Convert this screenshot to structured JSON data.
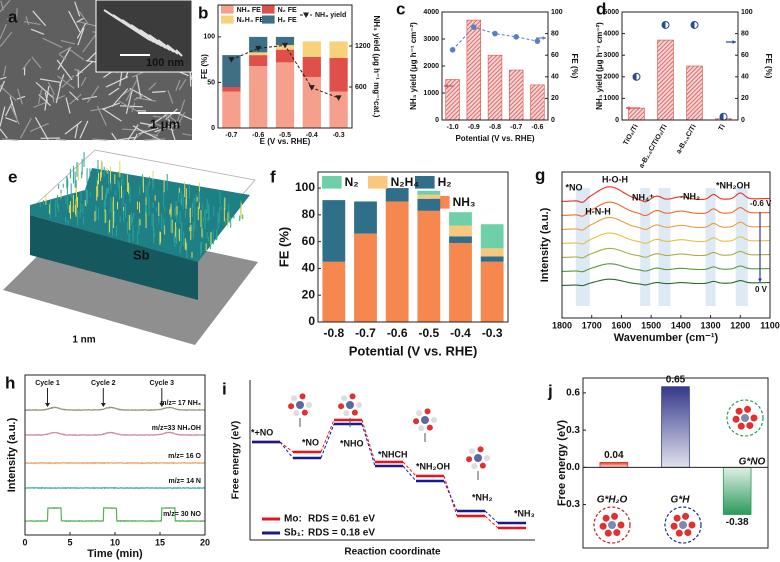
{
  "chart_data": [
    {
      "type": "image",
      "label": "a",
      "annotations": [
        "100 nm",
        "1 μm"
      ]
    },
    {
      "type": "bar",
      "label": "b",
      "stacked": true,
      "xlabel": "E (V vs. RHE)",
      "ylabel": "FE (%)",
      "y2label": "NH₃ yield (μg h⁻¹ mg⁻¹cat.)",
      "categories": [
        "-0.7",
        "-0.6",
        "-0.5",
        "-0.4",
        "-0.3"
      ],
      "series": [
        {
          "name": "NH₃ FE",
          "color": "#f4a08c",
          "values": [
            40,
            68,
            72,
            56,
            40
          ]
        },
        {
          "name": "N₂ FE",
          "color": "#e0504a",
          "values": [
            5,
            12,
            14,
            22,
            37
          ]
        },
        {
          "name": "N₂H₄ FE",
          "color": "#f7d27a",
          "values": [
            0,
            3,
            5,
            17,
            18
          ]
        },
        {
          "name": "H₂ FE",
          "color": "#3d6f86",
          "values": [
            35,
            17,
            9,
            0,
            0
          ]
        },
        {
          "name": "NH₃ yield",
          "color": "#222222",
          "axis": "y2",
          "line": true,
          "dashed": true,
          "marker": "triangle-down",
          "values": [
            1000,
            1165,
            1210,
            590,
            440
          ]
        }
      ],
      "ylim": [
        0,
        135
      ],
      "yticks": [
        0,
        50,
        100
      ],
      "y2lim": [
        0,
        1800
      ],
      "y2ticks": [
        600,
        1200
      ]
    },
    {
      "type": "bar",
      "label": "c",
      "xlabel": "Potential (V vs. RHE)",
      "ylabel": "NH₃ yield (μg h⁻¹ cm⁻²)",
      "y2label": "FE (%)",
      "categories": [
        "-1.0",
        "-0.9",
        "-0.8",
        "-0.7",
        "-0.6"
      ],
      "series": [
        {
          "color": "#d9534f",
          "hatch": true,
          "values": [
            1500,
            3700,
            2400,
            1850,
            1300
          ]
        },
        {
          "color": "#5b7fc4",
          "axis": "y2",
          "line": true,
          "dashed": true,
          "marker": "circle",
          "values": [
            65,
            86,
            80,
            77,
            73
          ]
        }
      ],
      "ylim": [
        0,
        4000
      ],
      "yticks": [
        0,
        1000,
        2000,
        3000,
        4000
      ],
      "y2lim": [
        0,
        100
      ],
      "y2ticks": [
        0,
        20,
        40,
        60,
        80,
        100
      ]
    },
    {
      "type": "bar",
      "label": "d",
      "ylabel": "NH₃ yield (μg h⁻¹ cm⁻²)",
      "y2label": "FE (%)",
      "categories": [
        "TiO₂/Ti",
        "a-B₂.₆C/TiO₂/Ti",
        "a-B₂.₆C/Ti",
        "Ti"
      ],
      "series": [
        {
          "color": "#d9534f",
          "hatch": true,
          "values": [
            550,
            3700,
            2500,
            60
          ]
        },
        {
          "color": "#2b4a8c",
          "axis": "y2",
          "marker": "half-circle",
          "values": [
            40,
            88,
            88,
            3
          ]
        }
      ],
      "ylim": [
        0,
        5000
      ],
      "yticks": [
        0,
        1000,
        2000,
        3000,
        4000,
        5000
      ],
      "y2lim": [
        0,
        100
      ],
      "y2ticks": [
        0,
        20,
        40,
        60,
        80,
        100
      ]
    },
    {
      "type": "image",
      "label": "e",
      "annotations": [
        "Sb",
        "1 nm"
      ]
    },
    {
      "type": "bar",
      "label": "f",
      "stacked": true,
      "xlabel": "Potential (V vs. RHE)",
      "ylabel": "FE (%)",
      "categories": [
        "-0.8",
        "-0.7",
        "-0.6",
        "-0.5",
        "-0.4",
        "-0.3"
      ],
      "series": [
        {
          "name": "NH₃",
          "color": "#f5874f",
          "values": [
            45,
            66,
            90,
            83,
            59,
            45
          ]
        },
        {
          "name": "H₂",
          "color": "#2f6f8a",
          "values": [
            46,
            24,
            10,
            9,
            5,
            4
          ]
        },
        {
          "name": "N₂H₄",
          "color": "#f9c77e",
          "values": [
            0,
            0,
            0,
            3,
            8,
            6
          ]
        },
        {
          "name": "N₂",
          "color": "#6fcfa8",
          "values": [
            0,
            0,
            0,
            3,
            10,
            18
          ]
        }
      ],
      "ylim": [
        0,
        112
      ],
      "yticks": [
        0,
        20,
        40,
        60,
        80,
        100
      ]
    },
    {
      "type": "spectrum",
      "label": "g",
      "xlabel": "Wavenumber (cm⁻¹)",
      "ylabel": "Intensity (a.u.)",
      "xlim": [
        1800,
        1100
      ],
      "xticks": [
        1800,
        1700,
        1600,
        1500,
        1400,
        1300,
        1200,
        1100
      ],
      "colors": [
        "#e8321f",
        "#f06a2a",
        "#f39a3a",
        "#e8c040",
        "#a8b040",
        "#5a9a3a",
        "#2a6a2a"
      ],
      "annotations": [
        "*NO",
        "H-O-H",
        "H-N-H",
        "NH₄⁺",
        "-NH₂",
        "*NH₂OH"
      ],
      "potentials": [
        "-0.6 V",
        "0 V"
      ]
    },
    {
      "type": "ms",
      "label": "h",
      "xlabel": "Time (min)",
      "ylabel": "Intensity (a.u.)",
      "xlim": [
        0,
        20
      ],
      "xticks": [
        0,
        5,
        10,
        15,
        20
      ],
      "cycles": [
        "Cycle 1",
        "Cycle 2",
        "Cycle 3"
      ],
      "cycle_times": [
        2.5,
        8.7,
        15.2
      ],
      "traces": [
        {
          "name": "m/z= 17 NH₃",
          "color": "#8a9a7a"
        },
        {
          "name": "m/z=33 NH₂OH",
          "color": "#d08a9a"
        },
        {
          "name": "m/z= 16 O",
          "color": "#f0a060"
        },
        {
          "name": "m/z= 14 N",
          "color": "#40b0a0"
        },
        {
          "name": "m/z= 30 NO",
          "color": "#5ab05a"
        }
      ]
    },
    {
      "type": "energy-diagram",
      "label": "i",
      "xlabel": "Reaction coordinate",
      "ylabel": "Free energy (eV)",
      "states": [
        "*+NO",
        "*NO",
        "*NHO",
        "*NHCH",
        "*NH₂OH",
        "*NH₂",
        "*NH₃"
      ],
      "series": [
        {
          "name": "Mo:",
          "rds": "RDS = 0.61 eV",
          "color": "#e8141c"
        },
        {
          "name": "Sb₁:",
          "rds": "RDS = 0.18 eV",
          "color": "#1a1a8c"
        }
      ]
    },
    {
      "type": "bar",
      "label": "j",
      "ylabel": "Free energy (eV)",
      "categories": [
        "G*H₂O",
        "G*H",
        "G*NO"
      ],
      "values": [
        0.04,
        0.65,
        -0.38
      ],
      "colors": [
        "#e23a2a",
        "#34398a",
        "#2a9a5a"
      ],
      "ylim": [
        -0.65,
        0.72
      ],
      "yticks": [
        -0.3,
        {
          "value": 0,
          "label": "0.0"
        },
        0.3,
        0.6
      ]
    }
  ]
}
